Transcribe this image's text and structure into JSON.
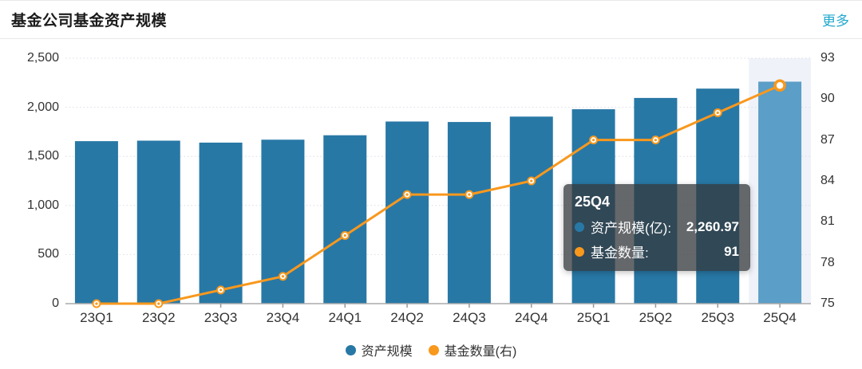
{
  "header": {
    "title": "基金公司基金资产规模",
    "more_link": "更多"
  },
  "chart_data": {
    "type": "bar",
    "title": "基金公司基金资产规模",
    "categories": [
      "23Q1",
      "23Q2",
      "23Q3",
      "23Q4",
      "24Q1",
      "24Q2",
      "24Q3",
      "24Q4",
      "25Q1",
      "25Q2",
      "25Q3",
      "25Q4"
    ],
    "series": [
      {
        "name": "资产规模",
        "type": "bar",
        "axis": "left",
        "values": [
          1655,
          1660,
          1640,
          1670,
          1715,
          1855,
          1850,
          1905,
          1980,
          2095,
          2190,
          2260.97
        ]
      },
      {
        "name": "基金数量(右)",
        "type": "line",
        "axis": "right",
        "values": [
          75,
          75,
          76,
          77,
          80,
          83,
          83,
          84,
          87,
          87,
          89,
          91
        ]
      }
    ],
    "left_axis": {
      "min": 0,
      "max": 2500,
      "tick_labels": [
        "0",
        "500",
        "1,000",
        "1,500",
        "2,000",
        "2,500"
      ]
    },
    "right_axis": {
      "min": 75,
      "max": 93,
      "tick_labels": [
        "75",
        "78",
        "81",
        "84",
        "87",
        "90",
        "93"
      ]
    },
    "highlighted_category": "25Q4",
    "grid": true,
    "legend_position": "bottom",
    "colors": {
      "bar": "#2878a6",
      "bar_highlight": "#5b9ec7",
      "line": "#f8981d",
      "highlight_band": "#eff3f9",
      "gridline": "#dcdce8",
      "axis_line": "#aaaaaa",
      "tick": "#999999"
    }
  },
  "tooltip": {
    "title": "25Q4",
    "rows": [
      {
        "label": "资产规模(亿):",
        "value": "2,260.97",
        "color": "#2878a6"
      },
      {
        "label": "基金数量:",
        "value": "91",
        "color": "#f8981d"
      }
    ]
  },
  "legend": [
    {
      "label": "资产规模",
      "color": "#2878a6"
    },
    {
      "label": "基金数量(右)",
      "color": "#f8981d"
    }
  ]
}
